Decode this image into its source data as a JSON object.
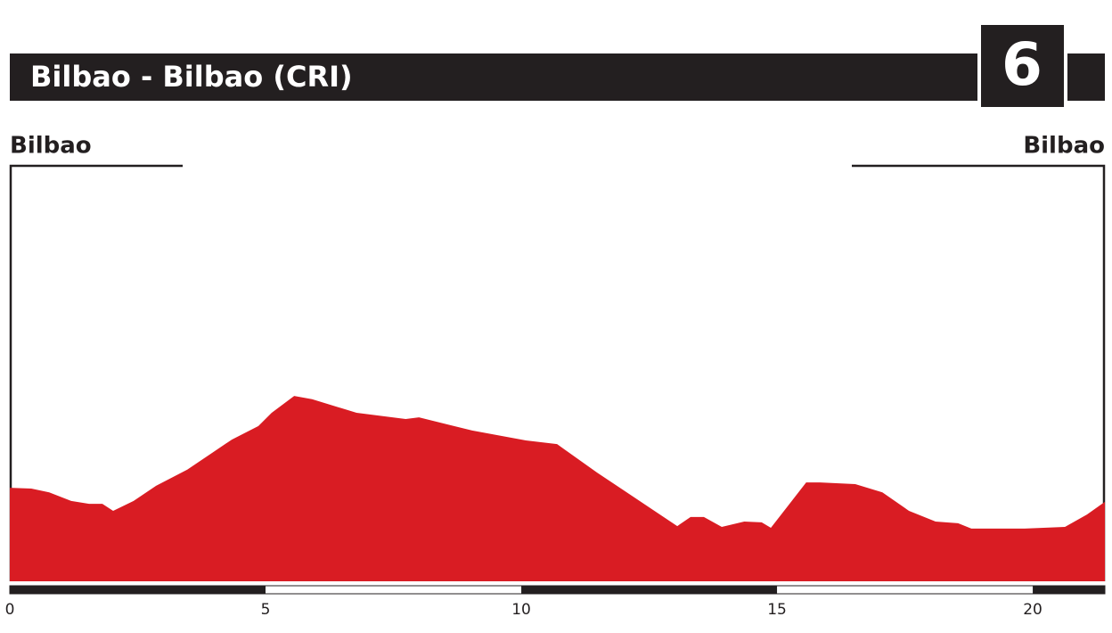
{
  "chart_data": {
    "type": "area",
    "title": "Bilbao - Bilbao (CRI)",
    "stage": "6",
    "start_label": "Bilbao",
    "end_label": "Bilbao",
    "color": "#d91c23",
    "x": [
      0,
      0.42,
      0.77,
      1.2,
      1.55,
      1.81,
      2.02,
      2.42,
      2.86,
      3.47,
      4.34,
      4.86,
      5.12,
      5.56,
      5.91,
      6.78,
      7.74,
      8.0,
      9.04,
      10.09,
      10.7,
      11.48,
      12.0,
      13.05,
      13.31,
      13.57,
      13.92,
      14.36,
      14.7,
      14.88,
      15.57,
      15.84,
      16.53,
      17.06,
      17.58,
      18.1,
      18.54,
      18.8,
      19.84,
      20.63,
      21.06,
      21.41
    ],
    "values": [
      22.7,
      22.5,
      21.6,
      19.5,
      18.8,
      18.8,
      17.1,
      19.5,
      23.2,
      27.1,
      34.4,
      37.7,
      40.9,
      45.0,
      44.2,
      40.9,
      39.4,
      39.8,
      36.6,
      34.2,
      33.3,
      26.4,
      22.1,
      13.4,
      15.6,
      15.6,
      13.2,
      14.5,
      14.3,
      13.0,
      24.0,
      24.0,
      23.6,
      21.6,
      17.1,
      14.5,
      14.1,
      12.8,
      12.8,
      13.2,
      16.2,
      19.3
    ],
    "xlim": [
      0,
      21.41
    ],
    "xticks": [
      0,
      5,
      10,
      15,
      20
    ],
    "ylim": [
      0,
      100
    ]
  }
}
